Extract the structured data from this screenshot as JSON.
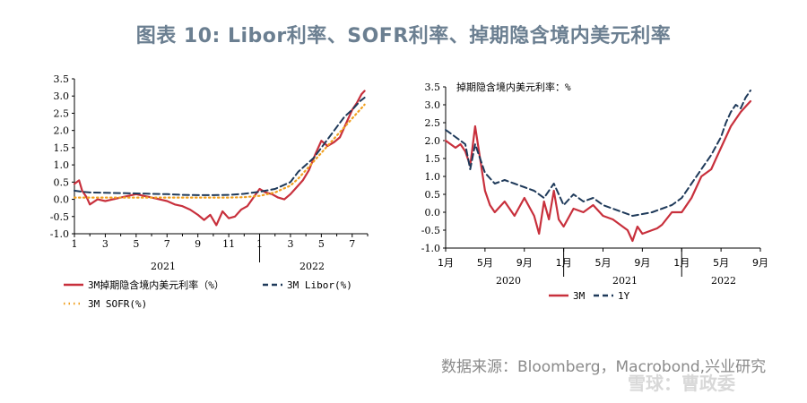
{
  "title": "图表 10:  Libor利率、SOFR利率、掉期隐含境内美元利率",
  "source": "数据来源：Bloomberg，Macrobond,兴业研究",
  "watermark": "雪球：曹政委",
  "colors": {
    "red": "#c8303c",
    "navy": "#1f3a5a",
    "orange": "#f0a020",
    "axis": "#000000"
  },
  "chart_data": [
    {
      "type": "line",
      "ylim": [
        -1.0,
        3.5
      ],
      "yticks": [
        "3.5",
        "3.0",
        "2.5",
        "2.0",
        "1.5",
        "1.0",
        "0.5",
        "0.0",
        "-0.5",
        "-1.0"
      ],
      "xlim": [
        1,
        20
      ],
      "xtick_labels": [
        "1",
        "3",
        "5",
        "7",
        "9",
        "11",
        "1",
        "3",
        "5",
        "7"
      ],
      "year_labels": [
        "2021",
        "2022"
      ],
      "series": [
        {
          "name": "3M掉期隐含境内美元利率（%）",
          "color": "#c8303c",
          "style": "solid",
          "x": [
            1,
            1.3,
            1.5,
            1.8,
            2.0,
            2.5,
            3,
            3.5,
            4,
            4.5,
            5,
            5.5,
            6,
            6.5,
            7,
            7.5,
            8,
            8.5,
            9,
            9.4,
            9.8,
            10.2,
            10.6,
            11,
            11.4,
            11.8,
            12.2,
            12.6,
            13,
            13.4,
            13.8,
            14.2,
            14.6,
            15,
            15.4,
            15.8,
            16.2,
            16.6,
            17,
            17.4,
            17.8,
            18.2,
            18.6,
            19,
            19.3,
            19.6,
            19.8
          ],
          "y": [
            0.45,
            0.55,
            0.25,
            0.05,
            -0.15,
            0.0,
            -0.05,
            0.0,
            0.05,
            0.1,
            0.15,
            0.1,
            0.05,
            0.0,
            -0.05,
            -0.15,
            -0.2,
            -0.3,
            -0.45,
            -0.6,
            -0.45,
            -0.75,
            -0.35,
            -0.55,
            -0.5,
            -0.3,
            -0.2,
            0.05,
            0.3,
            0.2,
            0.15,
            0.05,
            0.0,
            0.15,
            0.35,
            0.55,
            0.85,
            1.3,
            1.7,
            1.55,
            1.65,
            1.8,
            2.2,
            2.6,
            2.8,
            3.05,
            3.15
          ]
        },
        {
          "name": "3M Libor(%)",
          "color": "#1f3a5a",
          "style": "dash",
          "x": [
            1,
            1.5,
            2,
            3,
            4,
            5,
            6,
            7,
            8,
            9,
            10,
            11,
            12,
            13,
            14,
            15,
            15.5,
            16,
            16.5,
            17,
            17.5,
            18,
            18.5,
            19,
            19.5,
            19.8
          ],
          "y": [
            0.25,
            0.22,
            0.2,
            0.19,
            0.18,
            0.17,
            0.16,
            0.15,
            0.13,
            0.12,
            0.12,
            0.13,
            0.16,
            0.22,
            0.3,
            0.5,
            0.8,
            1.0,
            1.2,
            1.5,
            1.8,
            2.1,
            2.4,
            2.6,
            2.85,
            2.95
          ]
        },
        {
          "name": "3M SOFR(%)",
          "color": "#f0a020",
          "style": "dot",
          "x": [
            1,
            2,
            3,
            4,
            5,
            6,
            7,
            8,
            9,
            10,
            11,
            12,
            13,
            14,
            15,
            15.5,
            16,
            16.5,
            17,
            17.5,
            18,
            18.5,
            19,
            19.5,
            19.8
          ],
          "y": [
            0.05,
            0.05,
            0.05,
            0.05,
            0.05,
            0.05,
            0.05,
            0.05,
            0.05,
            0.05,
            0.05,
            0.06,
            0.1,
            0.2,
            0.4,
            0.6,
            0.85,
            1.1,
            1.35,
            1.6,
            1.85,
            2.1,
            2.35,
            2.6,
            2.75
          ]
        }
      ]
    },
    {
      "type": "line",
      "inner_title": "掉期隐含境内美元利率：%",
      "ylim": [
        -1.0,
        3.5
      ],
      "yticks": [
        "3.5",
        "3.0",
        "2.5",
        "2.0",
        "1.5",
        "1.0",
        "0.5",
        "0.0",
        "-0.5",
        "-1.0"
      ],
      "xlim": [
        0,
        32
      ],
      "xtick_labels": [
        "1月",
        "5月",
        "9月",
        "1月",
        "5月",
        "9月",
        "1月",
        "5月",
        "9月"
      ],
      "year_labels": [
        "2020",
        "2021",
        "2022"
      ],
      "series": [
        {
          "name": "3M",
          "color": "#c8303c",
          "style": "solid",
          "x": [
            0,
            0.5,
            1,
            1.5,
            2,
            2.5,
            3,
            3.5,
            4,
            4.5,
            5,
            6,
            7,
            8,
            9,
            9.5,
            10,
            10.5,
            11,
            11.5,
            12,
            13,
            14,
            15,
            16,
            17,
            17.5,
            18,
            18.5,
            19,
            19.5,
            20,
            20.5,
            21,
            21.5,
            22,
            23,
            24,
            25,
            26,
            27,
            27.5,
            28,
            28.5,
            29,
            29.5,
            30,
            30.5,
            31
          ],
          "y": [
            2.0,
            1.9,
            1.8,
            1.9,
            1.7,
            1.3,
            2.4,
            1.5,
            0.6,
            0.2,
            0.0,
            0.3,
            -0.1,
            0.4,
            -0.1,
            -0.6,
            0.3,
            -0.2,
            0.6,
            -0.2,
            -0.4,
            0.1,
            0.0,
            0.2,
            -0.1,
            -0.2,
            -0.3,
            -0.4,
            -0.5,
            -0.8,
            -0.4,
            -0.6,
            -0.55,
            -0.5,
            -0.45,
            -0.35,
            0.0,
            0.0,
            0.4,
            1.0,
            1.2,
            1.5,
            1.8,
            2.1,
            2.4,
            2.6,
            2.8,
            2.95,
            3.1
          ]
        },
        {
          "name": "1Y",
          "color": "#1f3a5a",
          "style": "dash",
          "x": [
            0,
            1,
            2,
            2.5,
            3,
            4,
            5,
            6,
            7,
            8,
            9,
            10,
            11,
            12,
            13,
            14,
            15,
            16,
            17,
            18,
            19,
            20,
            21,
            22,
            23,
            24,
            25,
            26,
            27,
            28,
            28.5,
            29,
            29.5,
            30,
            30.5,
            31
          ],
          "y": [
            2.3,
            2.1,
            1.9,
            1.2,
            1.9,
            1.1,
            0.8,
            0.9,
            0.8,
            0.7,
            0.6,
            0.4,
            0.8,
            0.2,
            0.5,
            0.3,
            0.4,
            0.2,
            0.1,
            0.0,
            -0.1,
            -0.05,
            0.0,
            0.1,
            0.2,
            0.4,
            0.8,
            1.2,
            1.6,
            2.1,
            2.5,
            2.8,
            3.0,
            2.9,
            3.2,
            3.4
          ]
        }
      ]
    }
  ],
  "legend1": [
    {
      "label": "3M掉期隐含境内美元利率（%）",
      "style": "solid",
      "color": "#c8303c"
    },
    {
      "label": "3M Libor(%)",
      "style": "dash",
      "color": "#1f3a5a"
    },
    {
      "label": "3M SOFR(%)",
      "style": "dot",
      "color": "#f0a020"
    }
  ],
  "legend2": [
    {
      "label": "3M",
      "style": "solid",
      "color": "#c8303c"
    },
    {
      "label": "1Y",
      "style": "dash",
      "color": "#1f3a5a"
    }
  ]
}
